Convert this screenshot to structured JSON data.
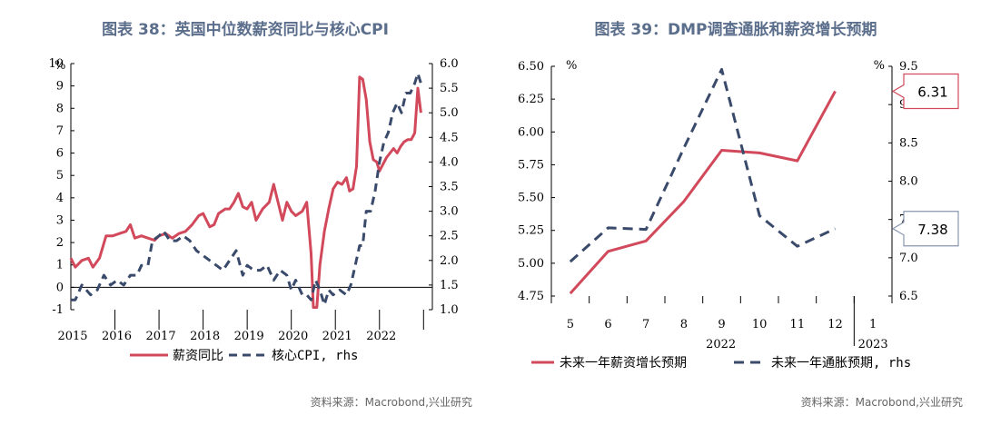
{
  "source_label": "资料来源：Macrobond,兴业研究",
  "colors": {
    "title": "#5b6e8c",
    "red": "#d1495b",
    "navy": "#3a4a6b",
    "source": "#666666",
    "callout_blue_border": "#8a96ad"
  },
  "chart_data": [
    {
      "type": "line",
      "title": "图表 38：英国中位数薪资同比与核心CPI",
      "left_unit": "%",
      "x_tick_labels": [
        "2015",
        "2016",
        "2017",
        "2018",
        "2019",
        "2020",
        "2021",
        "2022"
      ],
      "y_left": {
        "ticks": [
          "10",
          "9",
          "8",
          "7",
          "6",
          "5",
          "4",
          "3",
          "2",
          "1",
          "0",
          "-1"
        ],
        "ylim": [
          -1,
          10
        ]
      },
      "y_right": {
        "ticks": [
          "6.0",
          "5.5",
          "5.0",
          "4.5",
          "4.0",
          "3.5",
          "3.0",
          "2.5",
          "2.0",
          "1.5",
          "1.0"
        ],
        "ylim": [
          1.0,
          6.0
        ]
      },
      "legend": [
        "薪资同比",
        "核心CPI, rhs"
      ],
      "legend_placement": "bottom",
      "series": [
        {
          "name": "薪资同比",
          "axis": "left",
          "style": "solid",
          "points": [
            [
              2015.0,
              1.3
            ],
            [
              2015.1,
              0.9
            ],
            [
              2015.25,
              1.2
            ],
            [
              2015.4,
              1.3
            ],
            [
              2015.5,
              0.9
            ],
            [
              2015.65,
              1.3
            ],
            [
              2015.8,
              2.3
            ],
            [
              2015.95,
              2.3
            ],
            [
              2016.1,
              2.4
            ],
            [
              2016.25,
              2.5
            ],
            [
              2016.35,
              2.8
            ],
            [
              2016.45,
              2.2
            ],
            [
              2016.6,
              2.3
            ],
            [
              2016.75,
              2.2
            ],
            [
              2016.9,
              2.1
            ],
            [
              2017.0,
              2.3
            ],
            [
              2017.15,
              2.4
            ],
            [
              2017.3,
              2.2
            ],
            [
              2017.45,
              2.4
            ],
            [
              2017.6,
              2.5
            ],
            [
              2017.75,
              2.8
            ],
            [
              2017.9,
              3.2
            ],
            [
              2018.0,
              3.3
            ],
            [
              2018.15,
              2.7
            ],
            [
              2018.25,
              2.8
            ],
            [
              2018.35,
              3.3
            ],
            [
              2018.5,
              3.5
            ],
            [
              2018.6,
              3.5
            ],
            [
              2018.7,
              3.8
            ],
            [
              2018.8,
              4.2
            ],
            [
              2018.9,
              3.6
            ],
            [
              2019.0,
              3.5
            ],
            [
              2019.1,
              3.8
            ],
            [
              2019.2,
              3.0
            ],
            [
              2019.35,
              3.5
            ],
            [
              2019.5,
              3.8
            ],
            [
              2019.6,
              4.6
            ],
            [
              2019.7,
              3.8
            ],
            [
              2019.8,
              3.0
            ],
            [
              2019.9,
              3.8
            ],
            [
              2020.0,
              3.4
            ],
            [
              2020.1,
              3.2
            ],
            [
              2020.25,
              3.4
            ],
            [
              2020.35,
              3.8
            ],
            [
              2020.45,
              1.5
            ],
            [
              2020.5,
              -0.9
            ],
            [
              2020.58,
              -0.9
            ],
            [
              2020.65,
              1.0
            ],
            [
              2020.75,
              2.5
            ],
            [
              2020.85,
              3.5
            ],
            [
              2020.95,
              4.4
            ],
            [
              2021.05,
              4.7
            ],
            [
              2021.15,
              4.6
            ],
            [
              2021.25,
              4.9
            ],
            [
              2021.32,
              4.3
            ],
            [
              2021.4,
              4.4
            ],
            [
              2021.48,
              5.4
            ],
            [
              2021.55,
              9.4
            ],
            [
              2021.62,
              9.3
            ],
            [
              2021.7,
              8.4
            ],
            [
              2021.78,
              6.5
            ],
            [
              2021.86,
              5.7
            ],
            [
              2021.94,
              5.6
            ],
            [
              2022.0,
              5.2
            ],
            [
              2022.08,
              5.5
            ],
            [
              2022.16,
              5.8
            ],
            [
              2022.24,
              6.0
            ],
            [
              2022.32,
              6.2
            ],
            [
              2022.4,
              6.0
            ],
            [
              2022.48,
              6.3
            ],
            [
              2022.56,
              6.5
            ],
            [
              2022.64,
              6.6
            ],
            [
              2022.72,
              6.6
            ],
            [
              2022.8,
              6.9
            ],
            [
              2022.87,
              8.9
            ],
            [
              2022.94,
              7.8
            ]
          ]
        },
        {
          "name": "核心CPI, rhs",
          "axis": "right",
          "style": "dashed",
          "points": [
            [
              2015.0,
              1.2
            ],
            [
              2015.1,
              1.2
            ],
            [
              2015.25,
              1.5
            ],
            [
              2015.35,
              1.4
            ],
            [
              2015.45,
              1.3
            ],
            [
              2015.6,
              1.4
            ],
            [
              2015.75,
              1.7
            ],
            [
              2015.9,
              1.5
            ],
            [
              2016.05,
              1.6
            ],
            [
              2016.2,
              1.5
            ],
            [
              2016.35,
              1.7
            ],
            [
              2016.5,
              1.7
            ],
            [
              2016.6,
              1.9
            ],
            [
              2016.75,
              1.9
            ],
            [
              2016.85,
              2.4
            ],
            [
              2017.0,
              2.5
            ],
            [
              2017.1,
              2.6
            ],
            [
              2017.25,
              2.4
            ],
            [
              2017.4,
              2.4
            ],
            [
              2017.55,
              2.5
            ],
            [
              2017.7,
              2.4
            ],
            [
              2017.85,
              2.2
            ],
            [
              2018.0,
              2.1
            ],
            [
              2018.15,
              2.0
            ],
            [
              2018.3,
              1.9
            ],
            [
              2018.45,
              1.8
            ],
            [
              2018.6,
              2.0
            ],
            [
              2018.75,
              2.2
            ],
            [
              2018.9,
              1.7
            ],
            [
              2019.0,
              1.9
            ],
            [
              2019.15,
              1.8
            ],
            [
              2019.3,
              1.8
            ],
            [
              2019.45,
              1.9
            ],
            [
              2019.6,
              1.6
            ],
            [
              2019.75,
              1.8
            ],
            [
              2019.9,
              1.7
            ],
            [
              2020.0,
              1.4
            ],
            [
              2020.1,
              1.6
            ],
            [
              2020.25,
              1.3
            ],
            [
              2020.35,
              1.3
            ],
            [
              2020.45,
              1.2
            ],
            [
              2020.55,
              1.6
            ],
            [
              2020.65,
              1.4
            ],
            [
              2020.75,
              1.1
            ],
            [
              2020.85,
              1.4
            ],
            [
              2020.95,
              1.3
            ],
            [
              2021.1,
              1.4
            ],
            [
              2021.25,
              1.3
            ],
            [
              2021.35,
              1.5
            ],
            [
              2021.45,
              1.9
            ],
            [
              2021.55,
              2.3
            ],
            [
              2021.62,
              2.3
            ],
            [
              2021.7,
              3.0
            ],
            [
              2021.8,
              3.0
            ],
            [
              2021.9,
              3.4
            ],
            [
              2022.0,
              4.0
            ],
            [
              2022.1,
              4.4
            ],
            [
              2022.2,
              4.6
            ],
            [
              2022.3,
              5.0
            ],
            [
              2022.4,
              5.2
            ],
            [
              2022.5,
              5.0
            ],
            [
              2022.6,
              5.4
            ],
            [
              2022.7,
              5.4
            ],
            [
              2022.8,
              5.6
            ],
            [
              2022.87,
              5.8
            ],
            [
              2022.94,
              5.6
            ]
          ]
        }
      ]
    },
    {
      "type": "line",
      "title": "图表 39：DMP调查通胀和薪资增长预期",
      "left_unit": "%",
      "right_unit": "%",
      "x_tick_labels": [
        "5",
        "6",
        "7",
        "8",
        "9",
        "10",
        "11",
        "12",
        "1"
      ],
      "x_group_labels": [
        "2022",
        "2023"
      ],
      "y_left": {
        "ticks": [
          "6.50",
          "6.25",
          "6.00",
          "5.75",
          "5.50",
          "5.25",
          "5.00",
          "4.75"
        ],
        "ylim": [
          4.75,
          6.5
        ]
      },
      "y_right": {
        "ticks": [
          "9.5",
          "9.0",
          "8.5",
          "8.0",
          "7.5",
          "7.0",
          "6.5"
        ],
        "ylim": [
          6.5,
          9.5
        ]
      },
      "legend": [
        "未来一年薪资增长预期",
        "未来一年通胀预期, rhs"
      ],
      "legend_placement": "bottom",
      "series": [
        {
          "name": "未来一年薪资增长预期",
          "axis": "left",
          "style": "solid",
          "x": [
            "5",
            "6",
            "7",
            "8",
            "9",
            "10",
            "11",
            "12"
          ],
          "values": [
            4.77,
            5.09,
            5.17,
            5.47,
            5.86,
            5.84,
            5.78,
            6.31
          ]
        },
        {
          "name": "未来一年通胀预期, rhs",
          "axis": "right",
          "style": "dashed",
          "x": [
            "5",
            "6",
            "7",
            "8",
            "9",
            "10",
            "11",
            "12"
          ],
          "values": [
            6.95,
            7.39,
            7.37,
            8.43,
            9.46,
            7.55,
            7.15,
            7.38
          ]
        }
      ],
      "callouts": [
        {
          "series": "未来一年薪资增长预期",
          "text": "6.31",
          "color": "#d1495b"
        },
        {
          "series": "未来一年通胀预期, rhs",
          "text": "7.38",
          "color": "#3a4a6b"
        }
      ]
    }
  ]
}
